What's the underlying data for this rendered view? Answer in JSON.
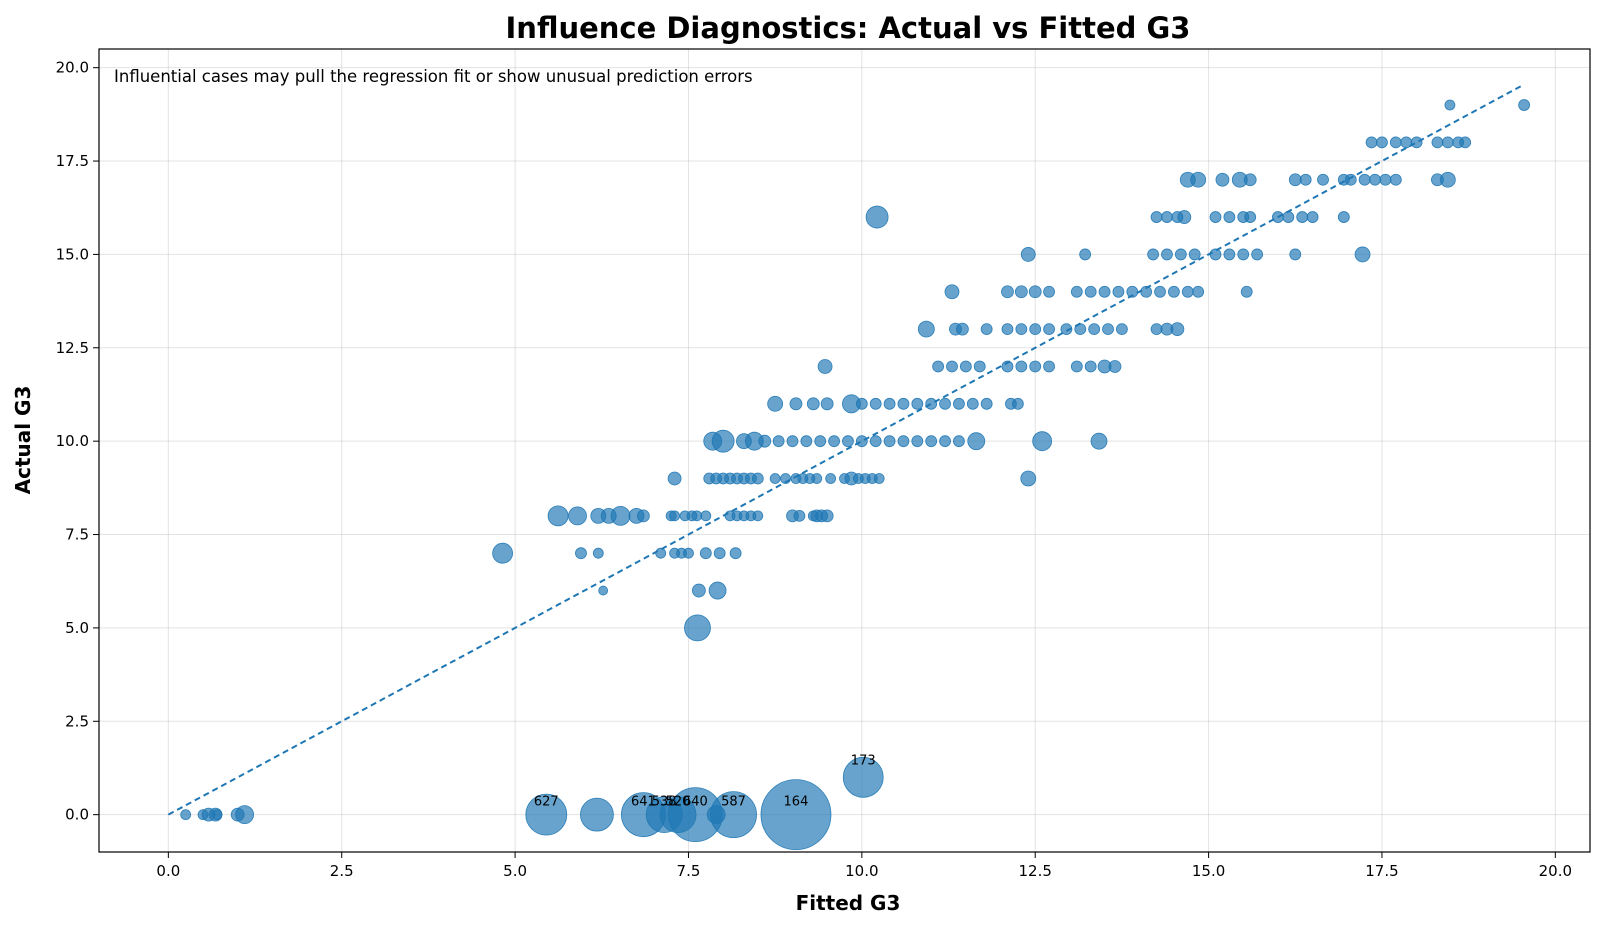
{
  "chart_data": {
    "type": "scatter",
    "title": "Influence Diagnostics: Actual vs Fitted G3",
    "annotation": "Influential cases may pull the regression fit or show unusual prediction errors",
    "xlabel": "Fitted G3",
    "ylabel": "Actual G3",
    "xlim": [
      -1.0,
      20.5
    ],
    "ylim": [
      -1.0,
      20.5
    ],
    "xticks": [
      "0.0",
      "2.5",
      "5.0",
      "7.5",
      "10.0",
      "12.5",
      "15.0",
      "17.5",
      "20.0"
    ],
    "yticks": [
      "0.0",
      "2.5",
      "5.0",
      "7.5",
      "10.0",
      "12.5",
      "15.0",
      "17.5",
      "20.0"
    ],
    "grid": true,
    "colors": {
      "points": "#1f77b4",
      "reference_line": "#1f77b4"
    },
    "reference_line": {
      "style": "dashed",
      "x": [
        0,
        19.55
      ],
      "y": [
        0,
        19.55
      ]
    },
    "point_size_meaning": "influence",
    "points": [
      [
        0.25,
        0,
        1
      ],
      [
        0.5,
        0,
        1
      ],
      [
        0.58,
        0,
        1.3
      ],
      [
        0.68,
        0,
        1.3
      ],
      [
        0.7,
        0,
        1
      ],
      [
        1.0,
        0,
        1.3
      ],
      [
        1.1,
        0,
        1.8
      ],
      [
        4.82,
        7,
        2
      ],
      [
        5.62,
        8,
        2
      ],
      [
        5.9,
        8,
        1.8
      ],
      [
        6.2,
        8,
        1.5
      ],
      [
        6.35,
        8,
        1.5
      ],
      [
        6.52,
        8,
        1.9
      ],
      [
        6.75,
        8,
        1.5
      ],
      [
        6.85,
        8,
        1.2
      ],
      [
        5.95,
        7,
        1.1
      ],
      [
        6.2,
        7,
        1
      ],
      [
        6.27,
        6,
        0.9
      ],
      [
        7.25,
        8,
        1
      ],
      [
        7.3,
        8,
        1
      ],
      [
        7.45,
        8,
        1
      ],
      [
        7.55,
        8,
        1
      ],
      [
        7.62,
        8,
        1
      ],
      [
        7.75,
        8,
        1
      ],
      [
        8.1,
        8,
        1
      ],
      [
        8.2,
        8,
        1
      ],
      [
        8.3,
        8,
        1
      ],
      [
        8.4,
        8,
        1
      ],
      [
        8.5,
        8,
        1
      ],
      [
        9.0,
        8,
        1.2
      ],
      [
        9.1,
        8,
        1.1
      ],
      [
        9.3,
        8,
        1
      ],
      [
        9.35,
        8,
        1.2
      ],
      [
        9.42,
        8,
        1.2
      ],
      [
        9.5,
        8,
        1.2
      ],
      [
        7.1,
        7,
        1
      ],
      [
        7.3,
        7,
        1
      ],
      [
        7.4,
        7,
        1
      ],
      [
        7.5,
        7,
        1
      ],
      [
        7.75,
        7,
        1.1
      ],
      [
        7.95,
        7,
        1.1
      ],
      [
        8.18,
        7,
        1.1
      ],
      [
        7.65,
        6,
        1.3
      ],
      [
        7.92,
        6,
        1.7
      ],
      [
        7.63,
        5,
        2.6
      ],
      [
        7.3,
        9,
        1.3
      ],
      [
        7.8,
        9,
        1.1
      ],
      [
        7.9,
        9,
        1.1
      ],
      [
        8.0,
        9,
        1.1
      ],
      [
        8.1,
        9,
        1.1
      ],
      [
        8.2,
        9,
        1.1
      ],
      [
        8.3,
        9,
        1.1
      ],
      [
        8.4,
        9,
        1.1
      ],
      [
        8.5,
        9,
        1.1
      ],
      [
        8.75,
        9,
        1
      ],
      [
        8.9,
        9,
        1
      ],
      [
        9.05,
        9,
        1
      ],
      [
        9.15,
        9,
        1
      ],
      [
        9.25,
        9,
        1
      ],
      [
        9.35,
        9,
        1
      ],
      [
        9.55,
        9,
        1
      ],
      [
        9.75,
        9,
        1
      ],
      [
        9.85,
        9,
        1.3
      ],
      [
        9.95,
        9,
        1
      ],
      [
        10.05,
        9,
        1
      ],
      [
        10.15,
        9,
        1
      ],
      [
        10.25,
        9,
        1
      ],
      [
        12.4,
        9,
        1.5
      ],
      [
        7.85,
        10,
        1.8
      ],
      [
        8.0,
        10,
        2.2
      ],
      [
        8.3,
        10,
        1.5
      ],
      [
        8.45,
        10,
        1.8
      ],
      [
        8.6,
        10,
        1.2
      ],
      [
        8.8,
        10,
        1.1
      ],
      [
        9.0,
        10,
        1.1
      ],
      [
        9.2,
        10,
        1.1
      ],
      [
        9.4,
        10,
        1.1
      ],
      [
        9.6,
        10,
        1.1
      ],
      [
        9.8,
        10,
        1.1
      ],
      [
        10.0,
        10,
        1.1
      ],
      [
        10.2,
        10,
        1.1
      ],
      [
        10.4,
        10,
        1.1
      ],
      [
        10.6,
        10,
        1.1
      ],
      [
        10.8,
        10,
        1.1
      ],
      [
        11.0,
        10,
        1.1
      ],
      [
        11.2,
        10,
        1.1
      ],
      [
        11.4,
        10,
        1.1
      ],
      [
        11.65,
        10,
        1.7
      ],
      [
        12.6,
        10,
        1.9
      ],
      [
        13.42,
        10,
        1.6
      ],
      [
        8.75,
        11,
        1.5
      ],
      [
        9.05,
        11,
        1.2
      ],
      [
        9.3,
        11,
        1.2
      ],
      [
        9.5,
        11,
        1.2
      ],
      [
        9.85,
        11,
        1.8
      ],
      [
        10.0,
        11,
        1.1
      ],
      [
        10.2,
        11,
        1.1
      ],
      [
        10.4,
        11,
        1.1
      ],
      [
        10.6,
        11,
        1.1
      ],
      [
        10.8,
        11,
        1.1
      ],
      [
        11.0,
        11,
        1.1
      ],
      [
        11.2,
        11,
        1.1
      ],
      [
        11.4,
        11,
        1.1
      ],
      [
        11.6,
        11,
        1.1
      ],
      [
        11.8,
        11,
        1.1
      ],
      [
        12.15,
        11,
        1.1
      ],
      [
        12.25,
        11,
        1.1
      ],
      [
        9.47,
        12,
        1.4
      ],
      [
        11.1,
        12,
        1.1
      ],
      [
        11.3,
        12,
        1.1
      ],
      [
        11.5,
        12,
        1.1
      ],
      [
        11.7,
        12,
        1.1
      ],
      [
        12.1,
        12,
        1.1
      ],
      [
        12.3,
        12,
        1.1
      ],
      [
        12.5,
        12,
        1.1
      ],
      [
        12.7,
        12,
        1.1
      ],
      [
        13.1,
        12,
        1.1
      ],
      [
        13.3,
        12,
        1.1
      ],
      [
        13.5,
        12,
        1.3
      ],
      [
        13.65,
        12,
        1.2
      ],
      [
        10.93,
        13,
        1.6
      ],
      [
        11.35,
        13,
        1.2
      ],
      [
        11.45,
        13,
        1.2
      ],
      [
        11.8,
        13,
        1.1
      ],
      [
        12.1,
        13,
        1.1
      ],
      [
        12.3,
        13,
        1.1
      ],
      [
        12.5,
        13,
        1.1
      ],
      [
        12.7,
        13,
        1.1
      ],
      [
        12.95,
        13,
        1.1
      ],
      [
        13.15,
        13,
        1.1
      ],
      [
        13.35,
        13,
        1.1
      ],
      [
        13.55,
        13,
        1.1
      ],
      [
        13.75,
        13,
        1.1
      ],
      [
        14.25,
        13,
        1.1
      ],
      [
        14.4,
        13,
        1.2
      ],
      [
        14.55,
        13,
        1.3
      ],
      [
        11.3,
        14,
        1.4
      ],
      [
        12.1,
        14,
        1.2
      ],
      [
        12.3,
        14,
        1.2
      ],
      [
        12.5,
        14,
        1.2
      ],
      [
        12.7,
        14,
        1.1
      ],
      [
        13.1,
        14,
        1.1
      ],
      [
        13.3,
        14,
        1.1
      ],
      [
        13.5,
        14,
        1.1
      ],
      [
        13.7,
        14,
        1.1
      ],
      [
        13.9,
        14,
        1.1
      ],
      [
        14.1,
        14,
        1.1
      ],
      [
        14.3,
        14,
        1.1
      ],
      [
        14.5,
        14,
        1.1
      ],
      [
        14.7,
        14,
        1.1
      ],
      [
        14.85,
        14,
        1.1
      ],
      [
        15.55,
        14,
        1.1
      ],
      [
        10.22,
        16,
        2.2
      ],
      [
        12.4,
        15,
        1.4
      ],
      [
        13.22,
        15,
        1.1
      ],
      [
        14.2,
        15,
        1.1
      ],
      [
        14.4,
        15,
        1.1
      ],
      [
        14.6,
        15,
        1.1
      ],
      [
        14.8,
        15,
        1.1
      ],
      [
        15.1,
        15,
        1.1
      ],
      [
        15.3,
        15,
        1.1
      ],
      [
        15.5,
        15,
        1.1
      ],
      [
        15.7,
        15,
        1.1
      ],
      [
        16.25,
        15,
        1.1
      ],
      [
        17.22,
        15,
        1.5
      ],
      [
        14.25,
        16,
        1.1
      ],
      [
        14.4,
        16,
        1.1
      ],
      [
        14.55,
        16,
        1.1
      ],
      [
        14.65,
        16,
        1.3
      ],
      [
        15.1,
        16,
        1.1
      ],
      [
        15.3,
        16,
        1.1
      ],
      [
        15.5,
        16,
        1.1
      ],
      [
        15.6,
        16,
        1.1
      ],
      [
        16.0,
        16,
        1.1
      ],
      [
        16.15,
        16,
        1.1
      ],
      [
        16.35,
        16,
        1.1
      ],
      [
        16.5,
        16,
        1.1
      ],
      [
        16.95,
        16,
        1.1
      ],
      [
        14.7,
        17,
        1.5
      ],
      [
        14.85,
        17,
        1.5
      ],
      [
        15.2,
        17,
        1.3
      ],
      [
        15.45,
        17,
        1.5
      ],
      [
        15.6,
        17,
        1.2
      ],
      [
        16.25,
        17,
        1.2
      ],
      [
        16.4,
        17,
        1.1
      ],
      [
        16.65,
        17,
        1.1
      ],
      [
        16.95,
        17,
        1.1
      ],
      [
        17.05,
        17,
        1.1
      ],
      [
        17.25,
        17,
        1.1
      ],
      [
        17.4,
        17,
        1.1
      ],
      [
        17.55,
        17,
        1.1
      ],
      [
        17.7,
        17,
        1.1
      ],
      [
        18.3,
        17,
        1.2
      ],
      [
        18.45,
        17,
        1.5
      ],
      [
        17.35,
        18,
        1.1
      ],
      [
        17.5,
        18,
        1.1
      ],
      [
        17.7,
        18,
        1.1
      ],
      [
        17.85,
        18,
        1.1
      ],
      [
        18.0,
        18,
        1.1
      ],
      [
        18.3,
        18,
        1.1
      ],
      [
        18.45,
        18,
        1.1
      ],
      [
        18.6,
        18,
        1.1
      ],
      [
        18.7,
        18,
        1.1
      ],
      [
        18.48,
        19,
        1
      ],
      [
        19.55,
        19,
        1.1
      ],
      [
        6.18,
        0,
        3.3
      ],
      [
        7.9,
        0,
        1.8
      ]
    ],
    "labeled_points": [
      {
        "id": "627",
        "x": 5.45,
        "y": 0,
        "size": 4.1
      },
      {
        "id": "641",
        "x": 6.85,
        "y": 0,
        "size": 4.4
      },
      {
        "id": "538",
        "x": 7.15,
        "y": 0,
        "size": 3.6
      },
      {
        "id": "520",
        "x": 7.35,
        "y": 0,
        "size": 3.6
      },
      {
        "id": "640",
        "x": 7.6,
        "y": 0,
        "size": 5.4
      },
      {
        "id": "587",
        "x": 8.15,
        "y": 0,
        "size": 4.6
      },
      {
        "id": "164",
        "x": 9.05,
        "y": 0,
        "size": 7.0
      },
      {
        "id": "173",
        "x": 10.02,
        "y": 1,
        "size": 4.0
      }
    ]
  }
}
